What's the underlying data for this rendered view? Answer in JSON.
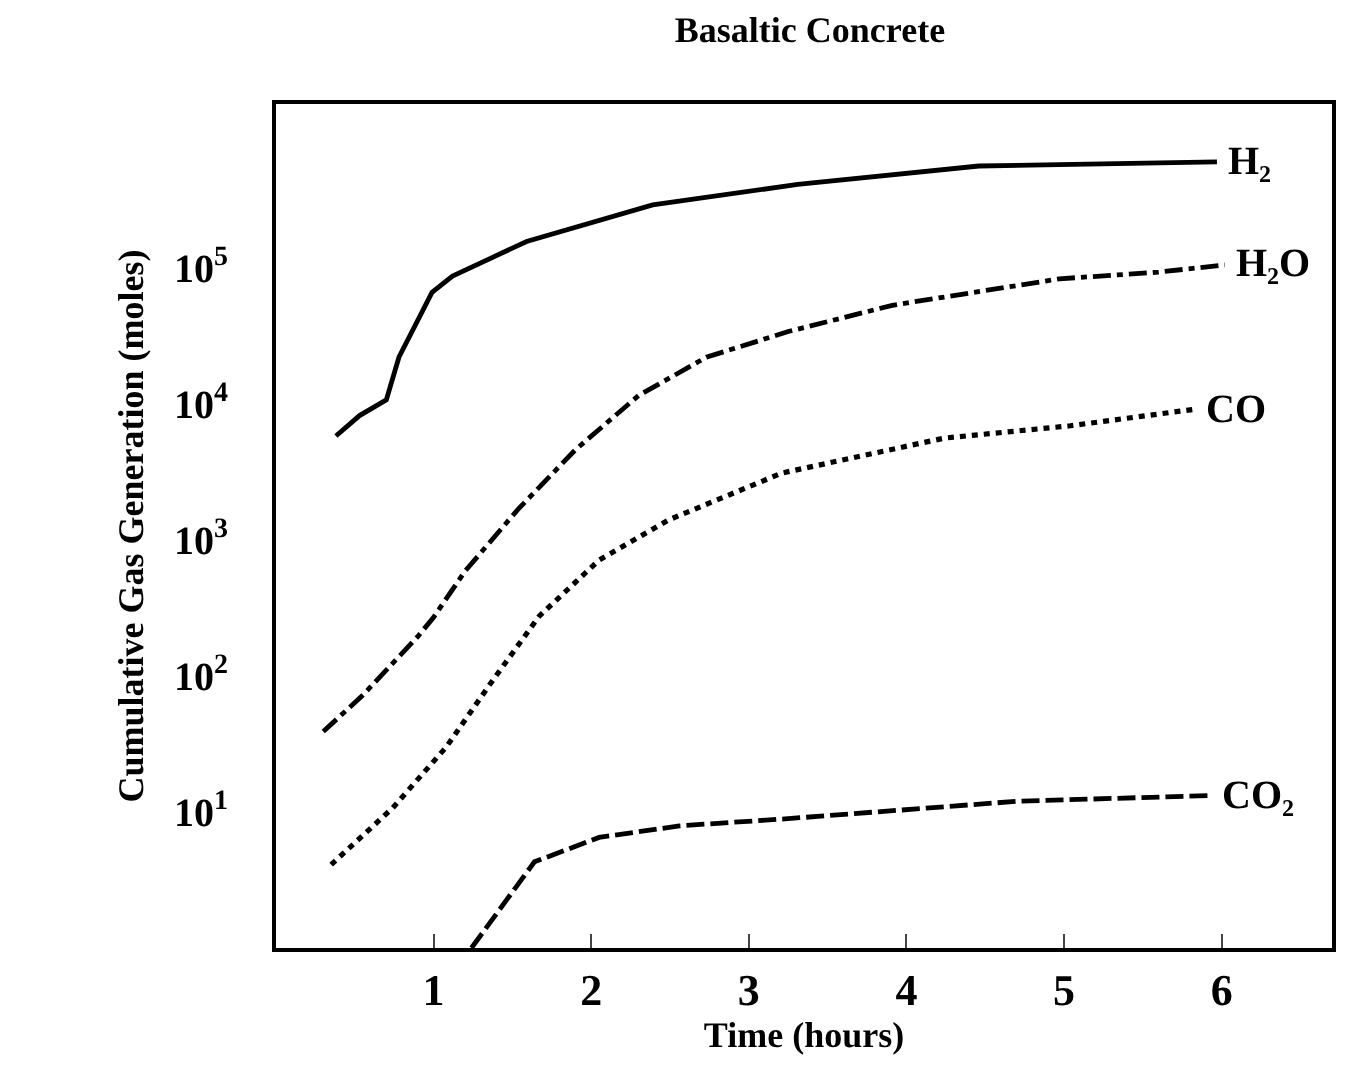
{
  "chart_data": {
    "type": "line",
    "title": "Basaltic Concrete",
    "xlabel": "Time (hours)",
    "ylabel": "Cumulative Gas Generation (moles)",
    "log": "y",
    "xlim": [
      0,
      6.7
    ],
    "xticks": [
      1,
      2,
      3,
      4,
      5,
      6
    ],
    "ylim": [
      1,
      1600000
    ],
    "yticks": [
      {
        "value": 10,
        "label": "10$^{1}$"
      },
      {
        "value": 100,
        "label": "10$^{2}$"
      },
      {
        "value": 1000,
        "label": "10$^{3}$"
      },
      {
        "value": 10000,
        "label": "10$^{4}$"
      },
      {
        "value": 100000,
        "label": "10$^{5}$"
      }
    ],
    "series": [
      {
        "name": "H₂",
        "color": "#000000",
        "line_style": "solid",
        "x": [
          0.38,
          0.53,
          0.7,
          0.78,
          0.99,
          1.12,
          1.59,
          2.39,
          3.31,
          4.46,
          5.97
        ],
        "values": [
          5800,
          8200,
          10700,
          22000,
          66000,
          87000,
          156000,
          290000,
          410000,
          560000,
          600000
        ]
      },
      {
        "name": "H₂O",
        "color": "#000000",
        "line_style": "dashdot",
        "x": [
          0.3,
          0.55,
          0.9,
          1.0,
          1.2,
          1.54,
          1.9,
          2.3,
          2.73,
          3.25,
          3.91,
          4.97,
          5.6,
          6.02
        ],
        "values": [
          39,
          72,
          195,
          270,
          590,
          1700,
          4600,
          11500,
          22000,
          34000,
          53000,
          83000,
          93000,
          105000
        ]
      },
      {
        "name": "CO",
        "color": "#000000",
        "line_style": "dotted",
        "x": [
          0.35,
          0.74,
          1.08,
          1.37,
          1.67,
          2.05,
          2.49,
          3.21,
          4.24,
          5.04,
          5.82
        ],
        "values": [
          4.1,
          10.7,
          30,
          91,
          275,
          710,
          1400,
          3100,
          5600,
          6900,
          9100
        ]
      },
      {
        "name": "CO₂",
        "color": "#000000",
        "line_style": "dashed",
        "x": [
          1.24,
          1.64,
          2.05,
          2.56,
          3.23,
          4.71,
          5.93
        ],
        "values": [
          1.0,
          4.3,
          6.5,
          7.9,
          8.9,
          12,
          13.2
        ]
      }
    ]
  }
}
